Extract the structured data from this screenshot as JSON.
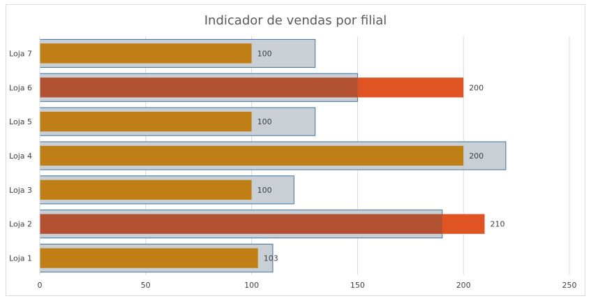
{
  "chart_data": {
    "type": "bar",
    "orientation": "horizontal",
    "title": "Indicador de vendas por filial",
    "xlabel": "",
    "ylabel": "",
    "categories": [
      "Loja 1",
      "Loja 2",
      "Loja 3",
      "Loja 4",
      "Loja 5",
      "Loja 6",
      "Loja 7"
    ],
    "xlim": [
      0,
      250
    ],
    "xticks": [
      0,
      50,
      100,
      150,
      200,
      250
    ],
    "grid": true,
    "legend": "none",
    "series": [
      {
        "role": "target",
        "values": [
          110,
          190,
          120,
          220,
          130,
          150,
          130
        ]
      },
      {
        "role": "actual",
        "values": [
          103,
          210,
          100,
          200,
          100,
          200,
          100
        ]
      }
    ],
    "data_labels": [
      "103",
      "210",
      "100",
      "200",
      "100",
      "200",
      "100"
    ],
    "colors": {
      "target_fill": "#c8d0d6",
      "target_border": "#41719c",
      "actual_fill": "#c07f16",
      "overlap_fill": "#b35233",
      "exceed_fill": "#e05423",
      "grid": "#d9d9d9"
    }
  }
}
